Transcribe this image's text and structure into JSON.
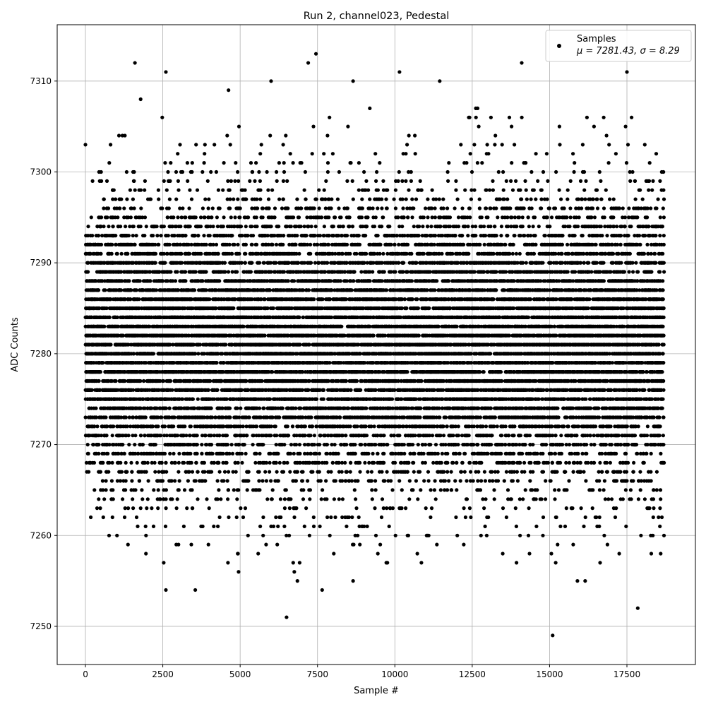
{
  "chart_data": {
    "type": "scatter",
    "title": "Run 2, channel023, Pedestal",
    "xlabel": "Sample #",
    "ylabel": "ADC Counts",
    "xlim": [
      -913,
      19713
    ],
    "ylim": [
      7245.8,
      7316.2
    ],
    "x_ticks": [
      0,
      2500,
      5000,
      7500,
      10000,
      12500,
      15000,
      17500
    ],
    "y_ticks": [
      7250,
      7260,
      7270,
      7280,
      7290,
      7300,
      7310
    ],
    "grid": true,
    "legend": {
      "placement": "top-right",
      "entries": [
        {
          "label": "Samples",
          "stats": "μ = 7281.43, σ = 8.29"
        }
      ]
    },
    "series": [
      {
        "name": "Samples",
        "color": "#000000",
        "marker": "circle",
        "x_range": [
          0,
          18700
        ],
        "mean": 7281.43,
        "sigma": 8.29,
        "values_integer": true,
        "outliers": [
          {
            "x": 1600,
            "y": 7312
          },
          {
            "x": 2600,
            "y": 7311
          },
          {
            "x": 7200,
            "y": 7312
          },
          {
            "x": 7450,
            "y": 7313
          },
          {
            "x": 10150,
            "y": 7311
          },
          {
            "x": 11450,
            "y": 7310
          },
          {
            "x": 14100,
            "y": 7312
          },
          {
            "x": 17500,
            "y": 7311
          },
          {
            "x": 6000,
            "y": 7310
          },
          {
            "x": 8650,
            "y": 7310
          },
          {
            "x": 6500,
            "y": 7251
          },
          {
            "x": 15100,
            "y": 7249
          },
          {
            "x": 17850,
            "y": 7252
          },
          {
            "x": 2600,
            "y": 7254
          },
          {
            "x": 3550,
            "y": 7254
          },
          {
            "x": 7650,
            "y": 7254
          },
          {
            "x": 8650,
            "y": 7255
          },
          {
            "x": 6850,
            "y": 7255
          },
          {
            "x": 15900,
            "y": 7255
          },
          {
            "x": 16150,
            "y": 7255
          },
          {
            "x": 4950,
            "y": 7256
          },
          {
            "x": 6750,
            "y": 7256
          }
        ]
      }
    ]
  }
}
